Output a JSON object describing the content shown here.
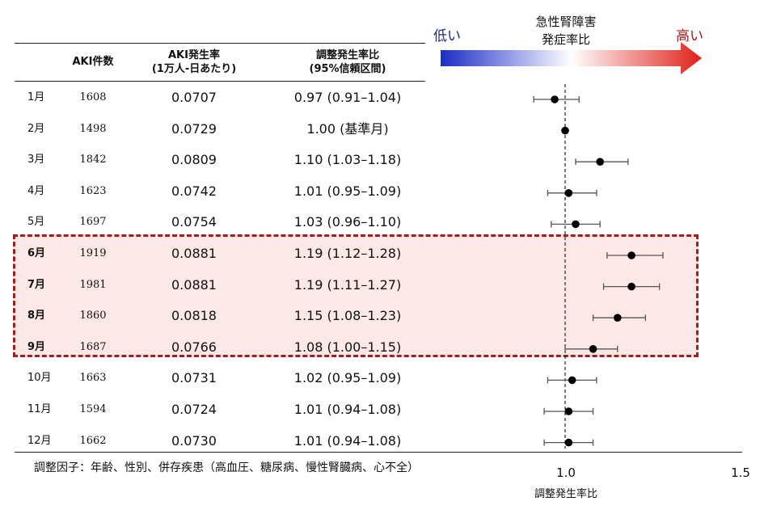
{
  "legend": {
    "low_label": "低い",
    "high_label": "高い",
    "title_line1": "急性腎障害",
    "title_line2": "発症率比",
    "colors": {
      "low": "#1b2cc6",
      "mid": "#ffffff",
      "high": "#e0201a",
      "highlight_bg": "#fde8e8",
      "highlight_border": "#a51c1c"
    }
  },
  "table": {
    "headers": {
      "aki_count": "AKI件数",
      "rate_line1": "AKI発生率",
      "rate_line2": "(1万人-日あたり)",
      "ratio_line1": "調整発生率比",
      "ratio_line2": "(95%信頼区間)"
    },
    "rows": [
      {
        "month": "1月",
        "count": "1608",
        "rate": "0.0707",
        "ratio_text": "0.97 (0.91–1.04)",
        "bold": false
      },
      {
        "month": "2月",
        "count": "1498",
        "rate": "0.0729",
        "ratio_text": "1.00 (基準月)",
        "bold": false
      },
      {
        "month": "3月",
        "count": "1842",
        "rate": "0.0809",
        "ratio_text": "1.10 (1.03–1.18)",
        "bold": false
      },
      {
        "month": "4月",
        "count": "1623",
        "rate": "0.0742",
        "ratio_text": "1.01 (0.95–1.09)",
        "bold": false
      },
      {
        "month": "5月",
        "count": "1697",
        "rate": "0.0754",
        "ratio_text": "1.03 (0.96–1.10)",
        "bold": false
      },
      {
        "month": "6月",
        "count": "1919",
        "rate": "0.0881",
        "ratio_text": "1.19 (1.12–1.28)",
        "bold": true
      },
      {
        "month": "7月",
        "count": "1981",
        "rate": "0.0881",
        "ratio_text": "1.19 (1.11–1.27)",
        "bold": true
      },
      {
        "month": "8月",
        "count": "1860",
        "rate": "0.0818",
        "ratio_text": "1.15 (1.08–1.23)",
        "bold": true
      },
      {
        "month": "9月",
        "count": "1687",
        "rate": "0.0766",
        "ratio_text": "1.08 (1.00–1.15)",
        "bold": true
      },
      {
        "month": "10月",
        "count": "1663",
        "rate": "0.0731",
        "ratio_text": "1.02 (0.95–1.09)",
        "bold": false
      },
      {
        "month": "11月",
        "count": "1594",
        "rate": "0.0724",
        "ratio_text": "1.01 (0.94–1.08)",
        "bold": false
      },
      {
        "month": "12月",
        "count": "1662",
        "rate": "0.0730",
        "ratio_text": "1.01 (0.94–1.08)",
        "bold": false
      }
    ]
  },
  "footnote": "調整因子：年齢、性別、併存疾患（高血圧、糖尿病、慢性腎臓病、心不全）",
  "chart_data": {
    "type": "scatter",
    "subtype": "forest-plot",
    "xlabel": "調整発生率比",
    "xlim": [
      0.9,
      1.5
    ],
    "x_tick_labels": [
      "1.0",
      "1.5"
    ],
    "reference_line": 1.0,
    "categories": [
      "1月",
      "2月",
      "3月",
      "4月",
      "5月",
      "6月",
      "7月",
      "8月",
      "9月",
      "10月",
      "11月",
      "12月"
    ],
    "estimates": [
      0.97,
      1.0,
      1.1,
      1.01,
      1.03,
      1.19,
      1.19,
      1.15,
      1.08,
      1.02,
      1.01,
      1.01
    ],
    "ci_lower": [
      0.91,
      null,
      1.03,
      0.95,
      0.96,
      1.12,
      1.11,
      1.08,
      1.0,
      0.95,
      0.94,
      0.94
    ],
    "ci_upper": [
      1.04,
      null,
      1.18,
      1.09,
      1.1,
      1.28,
      1.27,
      1.23,
      1.15,
      1.09,
      1.08,
      1.08
    ],
    "highlighted_months": [
      "6月",
      "7月",
      "8月",
      "9月"
    ]
  }
}
